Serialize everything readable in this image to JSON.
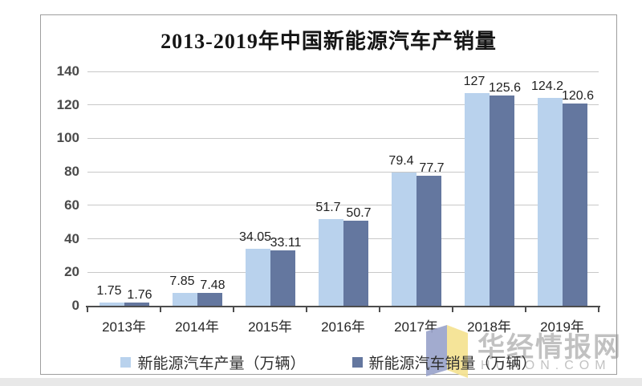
{
  "chart_data": {
    "type": "bar",
    "title": "2013-2019年中国新能源汽车产销量",
    "categories": [
      "2013年",
      "2014年",
      "2015年",
      "2016年",
      "2017年",
      "2018年",
      "2019年"
    ],
    "series": [
      {
        "name": "新能源汽车产量（万辆）",
        "color": "#b9d2ed",
        "values": [
          1.75,
          7.85,
          34.05,
          51.7,
          79.4,
          127,
          124.2
        ]
      },
      {
        "name": "新能源汽车销量（万辆）",
        "color": "#64779f",
        "values": [
          1.76,
          7.48,
          33.11,
          50.7,
          77.7,
          125.6,
          120.6
        ]
      }
    ],
    "ylim": [
      0,
      140
    ],
    "yticks": [
      0,
      20,
      40,
      60,
      80,
      100,
      120,
      140
    ],
    "grid": true,
    "legend_position": "bottom"
  },
  "watermark": {
    "cn": "华经情报网",
    "en": "HUAON.COM",
    "logo_blue": "#99a2ca",
    "logo_yellow": "#f5e28e"
  },
  "colors": {
    "gridline": "#c8c8c8",
    "axis": "#4d4d4d",
    "panel_border": "#9e9e9e",
    "bottom_strip": "#e8e8e8"
  }
}
